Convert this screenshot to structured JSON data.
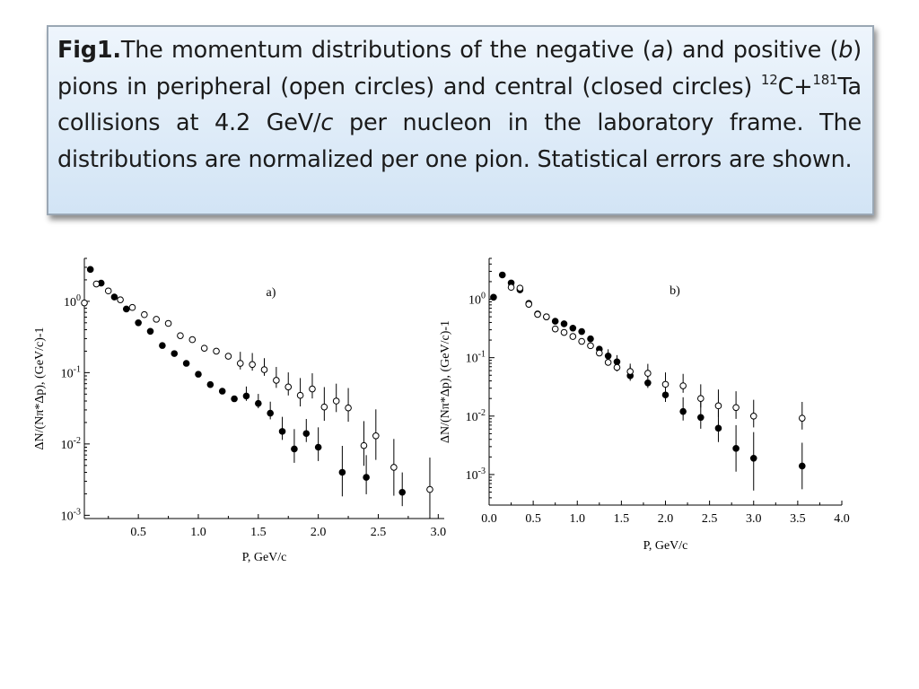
{
  "caption": {
    "fig": "Fig1.",
    "t1": "The momentum distributions of the negative (",
    "a": "a",
    "t2": ") and positive (",
    "b": "b",
    "t3": ") pions in peripheral (open circles) and central (closed circles) ",
    "sup1": "12",
    "t4": "C+",
    "sup2": "181",
    "t5": "Ta collisions at 4.2 GeV/",
    "c": "c",
    "t6": " per nucleon in the laboratory frame. The distributions are normalized per one pion. Statistical errors are shown."
  },
  "chart_data": [
    {
      "type": "scatter",
      "panel_label": "a)",
      "xlabel": "P, GeV/c",
      "ylabel": "ΔN/(Nπ*Δp), (GeV/c)-1",
      "yscale": "log",
      "xlim": [
        0.05,
        3.05
      ],
      "ylim": [
        0.0009,
        4.0
      ],
      "x_ticks": [
        "0.5",
        "1.0",
        "1.5",
        "2.0",
        "2.5",
        "3.0"
      ],
      "y_ticks": [
        "10^0",
        "10^-1",
        "10^-2",
        "10^-3"
      ],
      "series": [
        {
          "marker": "closed",
          "points": [
            [
              0.1,
              2.8,
              0
            ],
            [
              0.19,
              1.8,
              0
            ],
            [
              0.3,
              1.15,
              0
            ],
            [
              0.4,
              0.78,
              0
            ],
            [
              0.5,
              0.5,
              0
            ],
            [
              0.6,
              0.38,
              0
            ],
            [
              0.7,
              0.24,
              0
            ],
            [
              0.8,
              0.185,
              0
            ],
            [
              0.9,
              0.135,
              0
            ],
            [
              1.0,
              0.095,
              0
            ],
            [
              1.1,
              0.068,
              0
            ],
            [
              1.2,
              0.055,
              0
            ],
            [
              1.3,
              0.043,
              0
            ],
            [
              1.4,
              0.047,
              0.12
            ],
            [
              1.5,
              0.037,
              0.12
            ],
            [
              1.6,
              0.027,
              0.15
            ],
            [
              1.7,
              0.015,
              0.2
            ],
            [
              1.8,
              0.0085,
              0.3
            ],
            [
              1.9,
              0.014,
              0.2
            ],
            [
              2.0,
              0.009,
              0.3
            ],
            [
              2.2,
              0.004,
              0.45
            ],
            [
              2.4,
              0.0034,
              0.35
            ],
            [
              2.7,
              0.0021,
              0.3
            ]
          ]
        },
        {
          "marker": "open",
          "points": [
            [
              0.05,
              0.95,
              0
            ],
            [
              0.15,
              1.75,
              0
            ],
            [
              0.25,
              1.4,
              0
            ],
            [
              0.35,
              1.05,
              0
            ],
            [
              0.45,
              0.82,
              0
            ],
            [
              0.55,
              0.65,
              0
            ],
            [
              0.65,
              0.56,
              0
            ],
            [
              0.75,
              0.49,
              0
            ],
            [
              0.85,
              0.33,
              0
            ],
            [
              0.95,
              0.29,
              0
            ],
            [
              1.05,
              0.22,
              0
            ],
            [
              1.15,
              0.2,
              0
            ],
            [
              1.25,
              0.17,
              0
            ],
            [
              1.35,
              0.135,
              0.15
            ],
            [
              1.45,
              0.13,
              0.15
            ],
            [
              1.55,
              0.11,
              0.15
            ],
            [
              1.65,
              0.078,
              0.18
            ],
            [
              1.75,
              0.063,
              0.2
            ],
            [
              1.85,
              0.048,
              0.25
            ],
            [
              1.95,
              0.059,
              0.22
            ],
            [
              2.05,
              0.033,
              0.3
            ],
            [
              2.15,
              0.04,
              0.25
            ],
            [
              2.25,
              0.032,
              0.3
            ],
            [
              2.38,
              0.0095,
              0.4
            ],
            [
              2.48,
              0.013,
              0.45
            ],
            [
              2.63,
              0.0047,
              0.5
            ],
            [
              2.93,
              0.0023,
              0.6
            ]
          ]
        }
      ]
    },
    {
      "type": "scatter",
      "panel_label": "b)",
      "xlabel": "P, GeV/c",
      "ylabel": "ΔN/(Nπ*Δp), (GeV/c)-1",
      "yscale": "log",
      "xlim": [
        0.0,
        4.0
      ],
      "ylim": [
        0.0003,
        5.0
      ],
      "x_ticks": [
        "0.0",
        "0.5",
        "1.0",
        "1.5",
        "2.0",
        "2.5",
        "3.0",
        "3.5",
        "4.0"
      ],
      "y_ticks": [
        "10^0",
        "10^-1",
        "10^-2",
        "10^-3"
      ],
      "series": [
        {
          "marker": "closed",
          "points": [
            [
              0.05,
              1.08,
              0
            ],
            [
              0.15,
              2.6,
              0
            ],
            [
              0.25,
              1.9,
              0
            ],
            [
              0.35,
              1.45,
              0
            ],
            [
              0.45,
              0.85,
              0
            ],
            [
              0.55,
              0.56,
              0
            ],
            [
              0.65,
              0.5,
              0
            ],
            [
              0.75,
              0.42,
              0
            ],
            [
              0.85,
              0.38,
              0
            ],
            [
              0.95,
              0.32,
              0
            ],
            [
              1.05,
              0.28,
              0
            ],
            [
              1.15,
              0.21,
              0
            ],
            [
              1.25,
              0.14,
              0
            ],
            [
              1.35,
              0.107,
              0.1
            ],
            [
              1.45,
              0.085,
              0.1
            ],
            [
              1.6,
              0.049,
              0.15
            ],
            [
              1.8,
              0.037,
              0.15
            ],
            [
              2.0,
              0.023,
              0.2
            ],
            [
              2.2,
              0.012,
              0.25
            ],
            [
              2.4,
              0.0095,
              0.3
            ],
            [
              2.6,
              0.0062,
              0.35
            ],
            [
              2.8,
              0.0028,
              0.5
            ],
            [
              3.0,
              0.0019,
              0.6
            ],
            [
              3.55,
              0.0014,
              0.5
            ]
          ]
        },
        {
          "marker": "open",
          "points": [
            [
              0.25,
              1.6,
              0
            ],
            [
              0.35,
              1.55,
              0
            ],
            [
              0.45,
              0.82,
              0
            ],
            [
              0.55,
              0.55,
              0
            ],
            [
              0.65,
              0.5,
              0
            ],
            [
              0.75,
              0.31,
              0
            ],
            [
              0.85,
              0.27,
              0
            ],
            [
              0.95,
              0.23,
              0
            ],
            [
              1.05,
              0.19,
              0
            ],
            [
              1.15,
              0.16,
              0
            ],
            [
              1.25,
              0.12,
              0.1
            ],
            [
              1.35,
              0.083,
              0.1
            ],
            [
              1.45,
              0.068,
              0.12
            ],
            [
              1.6,
              0.058,
              0.12
            ],
            [
              1.8,
              0.054,
              0.15
            ],
            [
              2.0,
              0.035,
              0.2
            ],
            [
              2.2,
              0.033,
              0.2
            ],
            [
              2.4,
              0.02,
              0.25
            ],
            [
              2.6,
              0.015,
              0.3
            ],
            [
              2.8,
              0.014,
              0.3
            ],
            [
              3.0,
              0.01,
              0.3
            ],
            [
              3.55,
              0.0092,
              0.3
            ]
          ]
        }
      ]
    }
  ]
}
